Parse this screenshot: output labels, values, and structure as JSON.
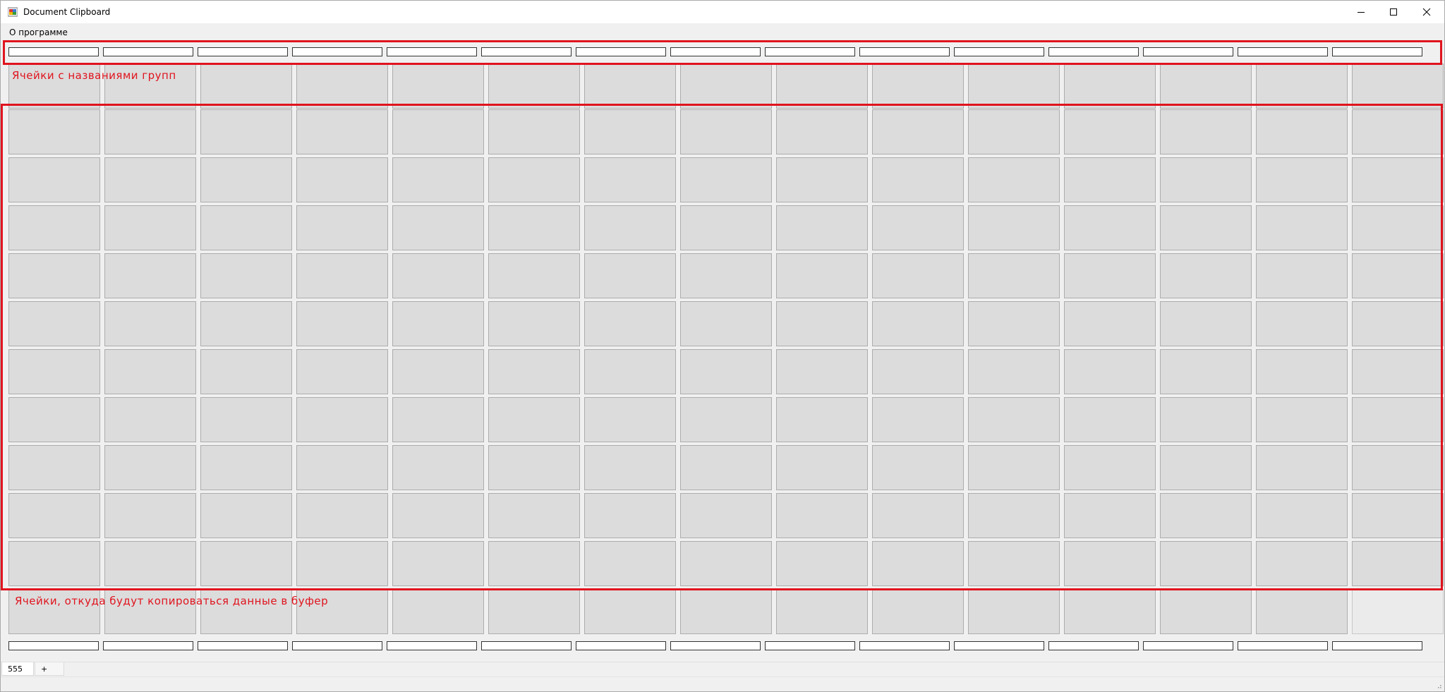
{
  "window": {
    "title": "Document Clipboard"
  },
  "menu": {
    "items": [
      "О программе"
    ]
  },
  "annotations": {
    "group_cells": "Ячейки с названиями групп",
    "data_cells": "Ячейки, откуда будут копироваться данные в буфер"
  },
  "tabs": {
    "items": [
      "555"
    ],
    "add_label": "+"
  },
  "grid": {
    "columns": 15,
    "data_rows": 10
  },
  "colors": {
    "accent": "#e0141e",
    "cell": "#dcdcdc",
    "background": "#f0f0f0"
  },
  "icons": [
    "app-icon",
    "minimize-icon",
    "maximize-icon",
    "close-icon",
    "size-grip-icon"
  ]
}
